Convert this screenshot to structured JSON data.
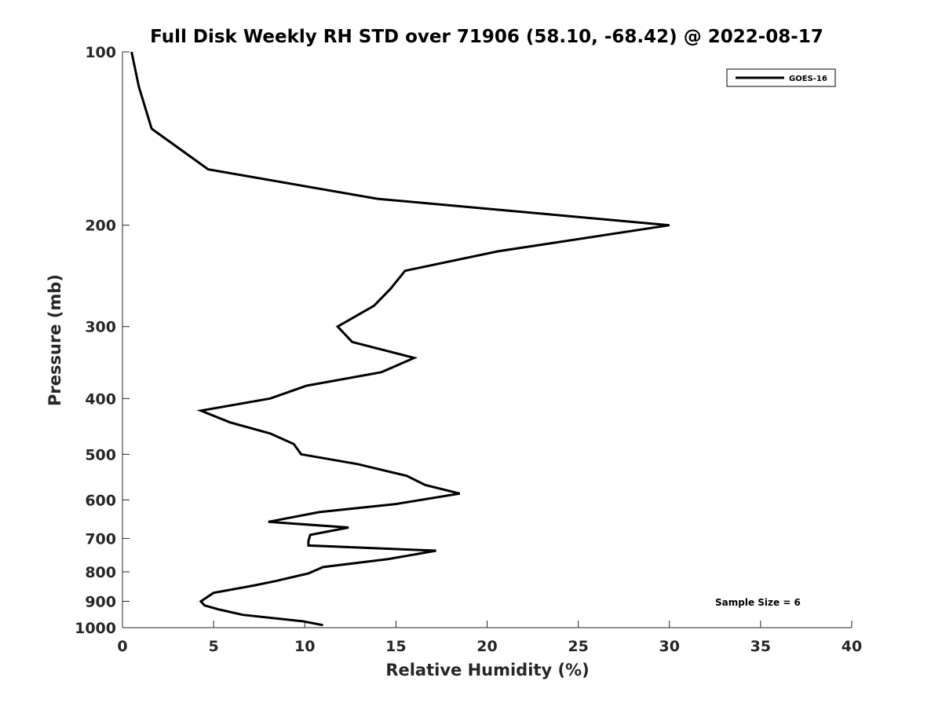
{
  "chart_data": {
    "type": "line",
    "title": "Full Disk Weekly RH STD over 71906 (58.10, -68.42) @ 2022-08-17",
    "xlabel": "Relative Humidity (%)",
    "ylabel": "Pressure (mb)",
    "xlim": [
      0,
      40
    ],
    "ylim": [
      100,
      1000
    ],
    "y_scale": "log",
    "y_reversed": true,
    "x_ticks": [
      0,
      5,
      10,
      15,
      20,
      25,
      30,
      35,
      40
    ],
    "y_ticks": [
      100,
      200,
      300,
      400,
      500,
      600,
      700,
      800,
      900,
      1000
    ],
    "grid": false,
    "legend_position": "top-right",
    "annotation": "Sample Size = 6",
    "series": [
      {
        "name": "GOES-16",
        "color": "#000000",
        "x": [
          0.5,
          0.9,
          1.6,
          4.7,
          14.0,
          30.0,
          20.6,
          15.5,
          14.7,
          13.8,
          11.8,
          12.6,
          16.0,
          14.2,
          10.1,
          8.1,
          4.3,
          5.9,
          8.1,
          9.4,
          9.8,
          12.9,
          15.6,
          16.6,
          18.5,
          15.0,
          10.8,
          8.0,
          12.4,
          10.3,
          10.2,
          10.2,
          17.2,
          14.6,
          11.0,
          10.2,
          8.4,
          7.2,
          5.0,
          4.3,
          4.5,
          5.3,
          6.6,
          9.9,
          11.0
        ],
        "y": [
          100,
          115,
          136,
          160,
          180,
          200,
          222,
          240,
          258,
          276,
          300,
          319,
          340,
          360,
          380,
          400,
          420,
          440,
          460,
          480,
          500,
          520,
          545,
          565,
          585,
          610,
          630,
          655,
          670,
          690,
          707,
          720,
          735,
          760,
          785,
          805,
          830,
          845,
          870,
          900,
          915,
          930,
          950,
          975,
          990
        ]
      }
    ]
  }
}
